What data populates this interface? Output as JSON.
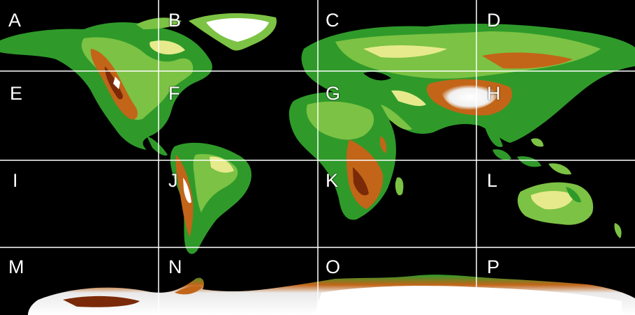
{
  "map": {
    "tile_labels": [
      "A",
      "B",
      "C",
      "D",
      "E",
      "F",
      "G",
      "H",
      "I",
      "J",
      "K",
      "L",
      "M",
      "N",
      "O",
      "P"
    ],
    "grid": {
      "columns": 4,
      "rows": 4,
      "line_color": "#ffffff"
    },
    "colors": {
      "ocean": "#000000",
      "lowland": "#2f9a2a",
      "midland": "#7cc244",
      "upland": "#e6ea8c",
      "highland": "#c26518",
      "mountain": "#7a2a08",
      "ice": "#ffffff"
    }
  }
}
